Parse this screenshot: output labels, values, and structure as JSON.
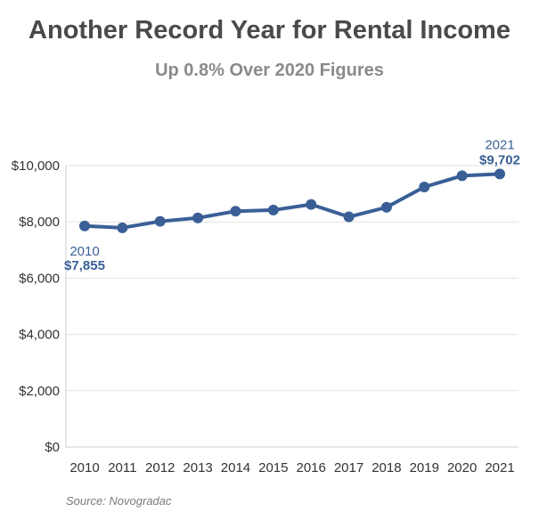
{
  "chart_data": {
    "type": "line",
    "title": "Another Record Year for Rental Income",
    "subtitle": "Up 0.8% Over 2020 Figures",
    "source": "Source: Novogradac",
    "xlabel": "",
    "ylabel": "",
    "ylim": [
      0,
      10000
    ],
    "y_ticks": [
      {
        "value": 0,
        "label": "$0"
      },
      {
        "value": 2000,
        "label": "$2,000"
      },
      {
        "value": 4000,
        "label": "$4,000"
      },
      {
        "value": 6000,
        "label": "$6,000"
      },
      {
        "value": 8000,
        "label": "$8,000"
      },
      {
        "value": 10000,
        "label": "$10,000"
      }
    ],
    "grid": true,
    "categories": [
      "2010",
      "2011",
      "2012",
      "2013",
      "2014",
      "2015",
      "2016",
      "2017",
      "2018",
      "2019",
      "2020",
      "2021"
    ],
    "series": [
      {
        "color": "#3a5f96",
        "values": [
          7855,
          7790,
          8020,
          8140,
          8380,
          8420,
          8620,
          8180,
          8520,
          9240,
          9640,
          9702
        ]
      }
    ],
    "annotations": [
      {
        "index": 0,
        "year": "2010",
        "value_label": "$7,855",
        "position": "below"
      },
      {
        "index": 11,
        "year": "2021",
        "value_label": "$9,702",
        "position": "above"
      }
    ]
  }
}
